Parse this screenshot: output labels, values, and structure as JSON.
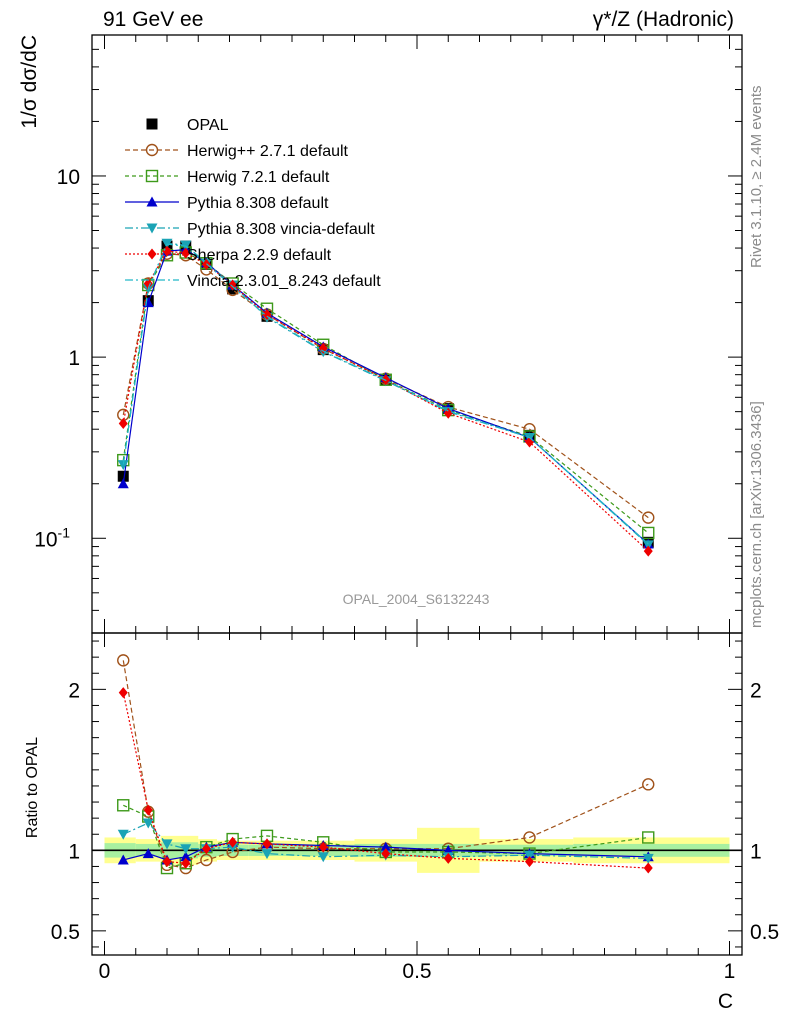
{
  "header": {
    "left": "91 GeV ee",
    "right": "γ*/Z (Hadronic)"
  },
  "side_labels": {
    "rivet": "Rivet 3.1.10, ≥ 2.4M events",
    "mcplots": "mcplots.cern.ch [arXiv:1306.3436]"
  },
  "chart_data": [
    {
      "type": "line",
      "ylabel": "1/σ dσ/dC",
      "yscale": "log",
      "ylim": [
        0.03,
        60
      ],
      "xlim": [
        -0.02,
        1.02
      ],
      "watermark": "OPAL_2004_S6132243",
      "ytick_labels": [
        "10",
        "1",
        "10^-1"
      ],
      "legend_placement": "top-left",
      "x": [
        0.03,
        0.07,
        0.1,
        0.13,
        0.163,
        0.205,
        0.26,
        0.35,
        0.45,
        0.55,
        0.68,
        0.87
      ],
      "series": [
        {
          "name": "OPAL",
          "color": "#000000",
          "marker": "square-filled",
          "dash": "",
          "values": [
            0.22,
            2.05,
            4.1,
            4.1,
            3.25,
            2.38,
            1.68,
            1.1,
            0.75,
            0.52,
            0.37,
            0.095
          ]
        },
        {
          "name": "Herwig++ 2.7.1 default",
          "color": "#a0521a",
          "marker": "circle-open",
          "dash": "5,3",
          "values": [
            0.48,
            2.55,
            3.72,
            3.65,
            3.05,
            2.35,
            1.72,
            1.11,
            0.76,
            0.53,
            0.4,
            0.13
          ]
        },
        {
          "name": "Herwig 7.2.1 default",
          "color": "#3d9a1a",
          "marker": "square-open",
          "dash": "4,3",
          "values": [
            0.27,
            2.5,
            3.65,
            3.78,
            3.3,
            2.55,
            1.85,
            1.17,
            0.75,
            0.51,
            0.365,
            0.107
          ]
        },
        {
          "name": "Pythia 8.308 default",
          "color": "#0000cc",
          "marker": "triangle-up",
          "dash": "",
          "values": [
            0.2,
            2.0,
            3.85,
            3.92,
            3.32,
            2.5,
            1.75,
            1.14,
            0.77,
            0.52,
            0.36,
            0.093
          ]
        },
        {
          "name": "Pythia 8.308 vincia-default",
          "color": "#1aa3b5",
          "marker": "triangle-down",
          "dash": "8,3,2,3",
          "values": [
            0.255,
            2.4,
            4.25,
            4.15,
            3.3,
            2.5,
            1.66,
            1.07,
            0.74,
            0.5,
            0.36,
            0.092
          ]
        },
        {
          "name": "Sherpa 2.2.9 default",
          "color": "#ee0000",
          "marker": "diamond",
          "dash": "2,2",
          "values": [
            0.43,
            2.55,
            3.85,
            3.75,
            3.25,
            2.5,
            1.72,
            1.12,
            0.75,
            0.49,
            0.34,
            0.085
          ]
        },
        {
          "name": "Vincia 2.3.01_8.243 default",
          "color": "#20b8c8",
          "marker": "none",
          "dash": "8,3,2,3",
          "values": [
            0.255,
            2.4,
            4.2,
            4.1,
            3.28,
            2.45,
            1.68,
            1.08,
            0.745,
            0.505,
            0.36,
            0.093
          ]
        }
      ]
    },
    {
      "type": "line",
      "ylabel": "Ratio to OPAL",
      "xlabel": "C",
      "ylim": [
        0.35,
        2.35
      ],
      "xlim": [
        -0.02,
        1.02
      ],
      "xtick_labels": [
        "0",
        "0.5",
        "1"
      ],
      "ytick_labels": [
        "2",
        "1",
        "0.5"
      ],
      "reference_line": 1,
      "uncertainty_bands": [
        {
          "x": [
            0.0,
            0.05,
            0.09,
            0.12,
            0.15,
            0.18,
            0.23,
            0.3,
            0.4,
            0.5,
            0.6,
            0.75,
            1.0
          ],
          "green": [
            0.045,
            0.04,
            0.05,
            0.05,
            0.04,
            0.035,
            0.035,
            0.035,
            0.04,
            0.04,
            0.035,
            0.04
          ],
          "yellow": [
            0.08,
            0.07,
            0.09,
            0.09,
            0.07,
            0.06,
            0.06,
            0.06,
            0.07,
            0.14,
            0.07,
            0.08
          ]
        }
      ],
      "x": [
        0.03,
        0.07,
        0.1,
        0.13,
        0.163,
        0.205,
        0.26,
        0.35,
        0.45,
        0.55,
        0.68,
        0.87
      ],
      "series": [
        {
          "name": "Herwig++ 2.7.1 default",
          "color": "#a0521a",
          "marker": "circle-open",
          "dash": "5,3",
          "values": [
            2.18,
            1.24,
            0.91,
            0.89,
            0.94,
            0.99,
            1.02,
            1.01,
            1.01,
            1.01,
            1.08,
            1.41
          ]
        },
        {
          "name": "Herwig 7.2.1 default",
          "color": "#3d9a1a",
          "marker": "square-open",
          "dash": "4,3",
          "values": [
            1.28,
            1.21,
            0.89,
            0.92,
            1.02,
            1.07,
            1.09,
            1.05,
            0.99,
            0.99,
            0.98,
            1.08
          ]
        },
        {
          "name": "Pythia 8.308 default",
          "color": "#0000cc",
          "marker": "triangle-up",
          "dash": "",
          "values": [
            0.94,
            0.98,
            0.94,
            0.96,
            1.02,
            1.05,
            1.04,
            1.03,
            1.02,
            1.0,
            0.98,
            0.96
          ]
        },
        {
          "name": "Pythia 8.308 vincia-default",
          "color": "#1aa3b5",
          "marker": "triangle-down",
          "dash": "8,3,2,3",
          "values": [
            1.1,
            1.17,
            1.04,
            1.01,
            1.01,
            1.02,
            0.98,
            0.96,
            0.97,
            0.96,
            0.97,
            0.95
          ]
        },
        {
          "name": "Sherpa 2.2.9 default",
          "color": "#ee0000",
          "marker": "diamond",
          "dash": "2,2",
          "values": [
            1.98,
            1.25,
            0.93,
            0.92,
            1.01,
            1.05,
            1.04,
            1.02,
            0.98,
            0.95,
            0.93,
            0.89
          ]
        }
      ]
    }
  ]
}
